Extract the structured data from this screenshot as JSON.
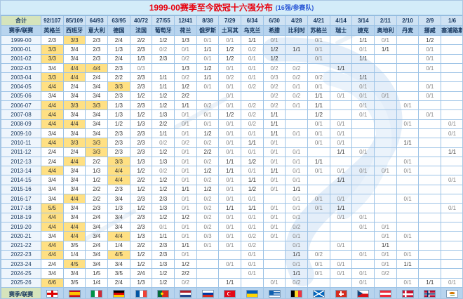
{
  "title": {
    "main": "1999-00赛季至今欧冠十六强分布",
    "sub": "(16强/参赛队)"
  },
  "corners": {
    "total_label": "合计",
    "axis_label": "赛季/联赛",
    "flags_label": "赛季/联赛"
  },
  "colors": {
    "highlight": "#ffe083",
    "header_bg": "#b8d4ee",
    "totals_bg": "#cfe2f3",
    "title_bg": "#d3ecf9",
    "title_main": "#e8000d",
    "title_sub": "#2e5bd7",
    "grid_line": "#9dc3e6"
  },
  "chart_data": {
    "type": "table",
    "title": "1999-00赛季至今欧冠十六强分布 (16强/参赛队)",
    "columns": [
      {
        "country": "英格兰",
        "total": "92/107",
        "flag": "england"
      },
      {
        "country": "西班牙",
        "total": "85/109",
        "flag": "spain"
      },
      {
        "country": "意大利",
        "total": "64/93",
        "flag": "italy"
      },
      {
        "country": "德国",
        "total": "63/95",
        "flag": "germany"
      },
      {
        "country": "法国",
        "total": "40/72",
        "flag": "france"
      },
      {
        "country": "葡萄牙",
        "total": "27/55",
        "flag": "portugal"
      },
      {
        "country": "荷兰",
        "total": "12/41",
        "flag": "netherlands"
      },
      {
        "country": "俄罗斯",
        "total": "8/38",
        "flag": "russia"
      },
      {
        "country": "土耳其",
        "total": "7/29",
        "flag": "turkey"
      },
      {
        "country": "乌克兰",
        "total": "6/34",
        "flag": "ukraine"
      },
      {
        "country": "希腊",
        "total": "6/30",
        "flag": "greece"
      },
      {
        "country": "比利时",
        "total": "4/28",
        "flag": "belgium"
      },
      {
        "country": "苏格兰",
        "total": "4/21",
        "flag": "scotland"
      },
      {
        "country": "瑞士",
        "total": "4/14",
        "flag": "switzerland"
      },
      {
        "country": "捷克",
        "total": "3/14",
        "flag": "czech"
      },
      {
        "country": "奥地利",
        "total": "2/11",
        "flag": "austria"
      },
      {
        "country": "丹麦",
        "total": "2/10",
        "flag": "denmark"
      },
      {
        "country": "挪威",
        "total": "2/9",
        "flag": "norway"
      },
      {
        "country": "塞浦路斯",
        "total": "1/6",
        "flag": "cyprus"
      }
    ],
    "rows": [
      {
        "season": "1999-00",
        "cells": [
          "2/3",
          "3/3",
          "2/3",
          "2/4",
          "2/2",
          "1/2",
          "1/3",
          "0/1",
          "0/1",
          "1/1",
          "0/1",
          "",
          "0/1",
          "",
          "1/1",
          "0/1",
          "",
          "1/2",
          ""
        ]
      },
      {
        "season": "2000-01",
        "cells": [
          "3/3",
          "3/4",
          "2/3",
          "1/3",
          "2/3",
          "0/2",
          "0/1",
          "1/1",
          "1/2",
          "0/2",
          "1/2",
          "1/1",
          "0/1",
          "",
          "0/1",
          "1/1",
          "",
          "0/1",
          ""
        ]
      },
      {
        "season": "2001-02",
        "cells": [
          "3/3",
          "3/4",
          "2/3",
          "2/4",
          "1/3",
          "2/3",
          "0/2",
          "0/1",
          "1/2",
          "0/1",
          "1/2",
          "",
          "0/1",
          "",
          "1/1",
          "",
          "",
          "0/1",
          ""
        ]
      },
      {
        "season": "2002-03",
        "cells": [
          "3/4",
          "4/4",
          "4/4",
          "2/3",
          "0/3",
          "",
          "1/3",
          "1/2",
          "0/1",
          "0/1",
          "0/2",
          "0/2",
          "",
          "1/1",
          "",
          "",
          "",
          "0/1",
          ""
        ]
      },
      {
        "season": "2003-04",
        "cells": [
          "3/3",
          "4/4",
          "2/4",
          "2/2",
          "2/3",
          "1/1",
          "0/2",
          "1/1",
          "0/2",
          "0/1",
          "0/3",
          "0/2",
          "0/2",
          "",
          "1/1",
          "",
          "",
          "",
          ""
        ]
      },
      {
        "season": "2004-05",
        "cells": [
          "4/4",
          "2/4",
          "3/4",
          "3/3",
          "2/3",
          "1/1",
          "1/2",
          "0/1",
          "0/1",
          "0/2",
          "0/2",
          "0/1",
          "0/1",
          "",
          "0/1",
          "",
          "",
          "0/1",
          ""
        ]
      },
      {
        "season": "2005-06",
        "cells": [
          "3/4",
          "3/4",
          "3/4",
          "2/3",
          "1/2",
          "1/2",
          "2/2",
          "",
          "0/1",
          "",
          "0/2",
          "0/2",
          "1/1",
          "0/1",
          "0/1",
          "0/1",
          "",
          "0/1",
          ""
        ]
      },
      {
        "season": "2006-07",
        "cells": [
          "4/4",
          "3/3",
          "3/3",
          "1/3",
          "2/3",
          "1/2",
          "1/1",
          "0/2",
          "0/1",
          "0/2",
          "0/2",
          "0/1",
          "1/1",
          "",
          "0/1",
          "",
          "0/1",
          "",
          ""
        ]
      },
      {
        "season": "2007-08",
        "cells": [
          "4/4",
          "3/4",
          "3/4",
          "1/3",
          "1/2",
          "1/3",
          "0/1",
          "0/1",
          "1/2",
          "0/2",
          "1/1",
          "",
          "1/2",
          "",
          "0/1",
          "",
          "",
          "0/1",
          ""
        ]
      },
      {
        "season": "2008-09",
        "cells": [
          "4/4",
          "4/4",
          "3/4",
          "1/2",
          "1/3",
          "2/2",
          "0/1",
          "0/1",
          "0/1",
          "0/2",
          "1/1",
          "",
          "0/1",
          "0/1",
          "",
          "",
          "0/1",
          "",
          "0/1"
        ]
      },
      {
        "season": "2009-10",
        "cells": [
          "3/4",
          "3/4",
          "3/4",
          "2/3",
          "2/3",
          "1/1",
          "0/1",
          "1/2",
          "0/1",
          "0/1",
          "1/1",
          "0/1",
          "0/1",
          "0/1",
          "",
          "",
          "",
          "",
          "0/1"
        ]
      },
      {
        "season": "2010-11",
        "cells": [
          "4/4",
          "3/3",
          "3/3",
          "2/3",
          "2/3",
          "0/2",
          "0/2",
          "0/2",
          "0/1",
          "1/1",
          "0/1",
          "",
          "0/1",
          "0/1",
          "",
          "",
          "1/1",
          "",
          ""
        ]
      },
      {
        "season": "2011-12",
        "cells": [
          "2/4",
          "2/4",
          "3/3",
          "2/3",
          "2/3",
          "1/2",
          "0/1",
          "2/2",
          "0/1",
          "0/1",
          "0/1",
          "0/1",
          "",
          "1/1",
          "0/1",
          "",
          "",
          "",
          "1/1"
        ]
      },
      {
        "season": "2012-13",
        "cells": [
          "2/4",
          "4/4",
          "2/2",
          "3/3",
          "1/3",
          "1/3",
          "0/1",
          "0/2",
          "1/1",
          "1/2",
          "0/1",
          "0/1",
          "1/1",
          "",
          "",
          "",
          "0/1",
          "",
          ""
        ]
      },
      {
        "season": "2013-14",
        "cells": [
          "4/4",
          "3/4",
          "1/3",
          "4/4",
          "1/2",
          "0/2",
          "0/1",
          "1/2",
          "1/1",
          "0/1",
          "1/1",
          "0/1",
          "0/1",
          "0/1",
          "0/1",
          "0/1",
          "0/1",
          "",
          ""
        ]
      },
      {
        "season": "2014-15",
        "cells": [
          "3/4",
          "3/4",
          "1/2",
          "4/4",
          "2/2",
          "1/2",
          "0/1",
          "0/2",
          "0/1",
          "1/1",
          "0/1",
          "0/1",
          "",
          "1/1",
          "",
          "",
          "",
          "",
          "0/1"
        ]
      },
      {
        "season": "2015-16",
        "cells": [
          "3/4",
          "3/4",
          "2/2",
          "2/3",
          "1/2",
          "1/2",
          "1/1",
          "1/2",
          "0/1",
          "1/2",
          "0/1",
          "1/1",
          "",
          "",
          "",
          "",
          "",
          "",
          ""
        ]
      },
      {
        "season": "2016-17",
        "cells": [
          "3/4",
          "4/4",
          "2/2",
          "3/4",
          "2/3",
          "2/3",
          "0/1",
          "0/2",
          "0/1",
          "0/1",
          "",
          "0/1",
          "0/1",
          "0/1",
          "",
          "",
          "0/1",
          "",
          ""
        ]
      },
      {
        "season": "2017-18",
        "cells": [
          "5/5",
          "3/4",
          "2/3",
          "1/3",
          "1/2",
          "1/3",
          "0/1",
          "0/2",
          "1/1",
          "1/1",
          "0/1",
          "0/1",
          "0/1",
          "1/1",
          "",
          "",
          "",
          "",
          "0/1"
        ]
      },
      {
        "season": "2018-19",
        "cells": [
          "4/4",
          "3/4",
          "2/4",
          "3/4",
          "2/3",
          "1/2",
          "1/2",
          "0/2",
          "0/1",
          "0/1",
          "0/1",
          "0/1",
          "",
          "0/1",
          "0/1",
          "",
          "",
          "",
          ""
        ]
      },
      {
        "season": "2019-20",
        "cells": [
          "4/4",
          "4/4",
          "3/4",
          "3/4",
          "2/3",
          "0/1",
          "0/1",
          "0/2",
          "0/1",
          "0/1",
          "0/1",
          "0/2",
          "",
          "",
          "0/1",
          "0/1",
          "",
          "",
          ""
        ]
      },
      {
        "season": "2020-21",
        "cells": [
          "3/4",
          "4/4",
          "3/4",
          "4/4",
          "1/3",
          "1/1",
          "0/1",
          "0/3",
          "0/1",
          "0/2",
          "0/1",
          "0/1",
          "",
          "",
          "",
          "0/1",
          "0/1",
          "",
          ""
        ]
      },
      {
        "season": "2021-22",
        "cells": [
          "4/4",
          "3/5",
          "2/4",
          "1/4",
          "2/2",
          "2/3",
          "1/1",
          "0/1",
          "0/1",
          "0/2",
          "",
          "0/1",
          "",
          "0/1",
          "",
          "1/1",
          "",
          "",
          ""
        ]
      },
      {
        "season": "2022-23",
        "cells": [
          "4/4",
          "1/4",
          "3/4",
          "4/5",
          "1/2",
          "2/3",
          "0/1",
          "",
          "",
          "0/1",
          "",
          "1/1",
          "0/2",
          "",
          "0/1",
          "0/1",
          "0/1",
          "",
          ""
        ]
      },
      {
        "season": "2023-24",
        "cells": [
          "2/4",
          "4/5",
          "3/4",
          "3/4",
          "1/2",
          "1/3",
          "1/2",
          "",
          "0/1",
          "0/1",
          "",
          "0/1",
          "0/1",
          "0/1",
          "",
          "0/1",
          "1/1",
          "",
          ""
        ]
      },
      {
        "season": "2024-25",
        "cells": [
          "3/4",
          "3/4",
          "1/5",
          "3/5",
          "2/4",
          "1/2",
          "2/2",
          "",
          "",
          "0/1",
          "",
          "1/1",
          "0/1",
          "0/1",
          "0/1",
          "0/2",
          "",
          "",
          ""
        ]
      },
      {
        "season": "2025-26",
        "cells": [
          "6/6",
          "3/5",
          "1/4",
          "2/4",
          "1/3",
          "1/2",
          "0/2",
          "",
          "1/1",
          "",
          "0/1",
          "0/2",
          "",
          "",
          "0/1",
          "",
          "0/1",
          "1/1",
          "0/1"
        ]
      }
    ]
  }
}
